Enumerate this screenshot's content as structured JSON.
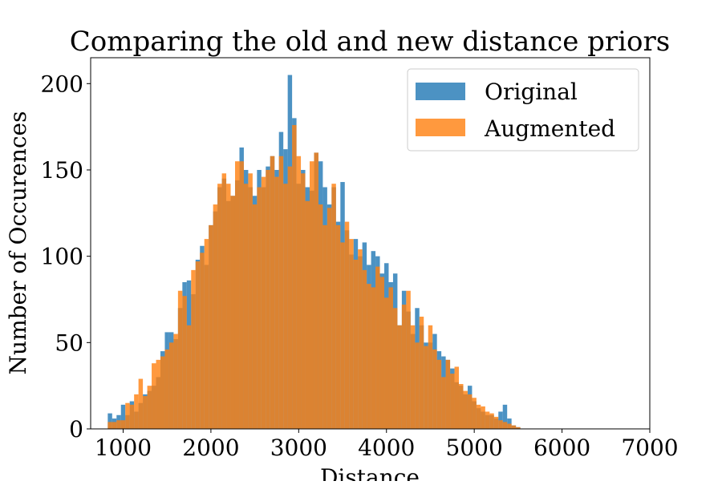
{
  "chart_data": {
    "type": "bar",
    "title": "Comparing the old and new distance priors",
    "xlabel": "Distance",
    "ylabel": "Number of Occurences",
    "xlim": [
      630,
      7000
    ],
    "ylim": [
      0,
      215
    ],
    "grid": false,
    "legend_position": "top-right",
    "xticks": [
      1000,
      2000,
      3000,
      4000,
      5000,
      6000,
      7000
    ],
    "xtick_labels": [
      "1000",
      "2000",
      "3000",
      "4000",
      "5000",
      "6000",
      "7000"
    ],
    "yticks": [
      0,
      50,
      100,
      150,
      200
    ],
    "ytick_labels": [
      "0",
      "50",
      "100",
      "150",
      "200"
    ],
    "bin_width": 50,
    "series": [
      {
        "name": "Original",
        "color": "#1f77b4",
        "x_start": 825,
        "values": [
          9,
          6,
          8,
          14,
          8,
          16,
          10,
          15,
          20,
          22,
          25,
          30,
          45,
          56,
          56,
          52,
          70,
          85,
          86,
          78,
          98,
          106,
          95,
          118,
          126,
          140,
          145,
          132,
          135,
          144,
          163,
          150,
          140,
          135,
          150,
          140,
          152,
          158,
          150,
          172,
          162,
          205,
          180,
          142,
          150,
          140,
          138,
          160,
          155,
          140,
          130,
          140,
          120,
          143,
          115,
          101,
          110,
          100,
          108,
          95,
          103,
          100,
          90,
          96,
          85,
          90,
          60,
          80,
          68,
          55,
          70,
          60,
          50,
          50,
          55,
          45,
          42,
          40,
          35,
          27,
          25,
          20,
          25,
          16,
          12,
          10,
          8,
          8,
          6,
          10,
          14,
          6,
          2,
          1
        ]
      },
      {
        "name": "Augmented",
        "color": "#ff7f0e",
        "x_start": 825,
        "values": [
          4,
          4,
          5,
          5,
          15,
          14,
          20,
          29,
          19,
          25,
          38,
          40,
          42,
          46,
          50,
          55,
          80,
          77,
          60,
          92,
          97,
          102,
          110,
          118,
          130,
          142,
          148,
          142,
          135,
          155,
          155,
          142,
          148,
          130,
          140,
          146,
          150,
          158,
          146,
          158,
          142,
          152,
          176,
          158,
          148,
          132,
          155,
          160,
          130,
          118,
          128,
          142,
          118,
          108,
          120,
          110,
          98,
          104,
          92,
          84,
          82,
          94,
          88,
          76,
          82,
          70,
          60,
          72,
          80,
          60,
          50,
          65,
          48,
          60,
          46,
          40,
          30,
          40,
          32,
          36,
          26,
          22,
          20,
          18,
          14,
          13,
          10,
          9,
          7,
          5,
          4,
          3,
          2,
          1
        ]
      }
    ]
  }
}
